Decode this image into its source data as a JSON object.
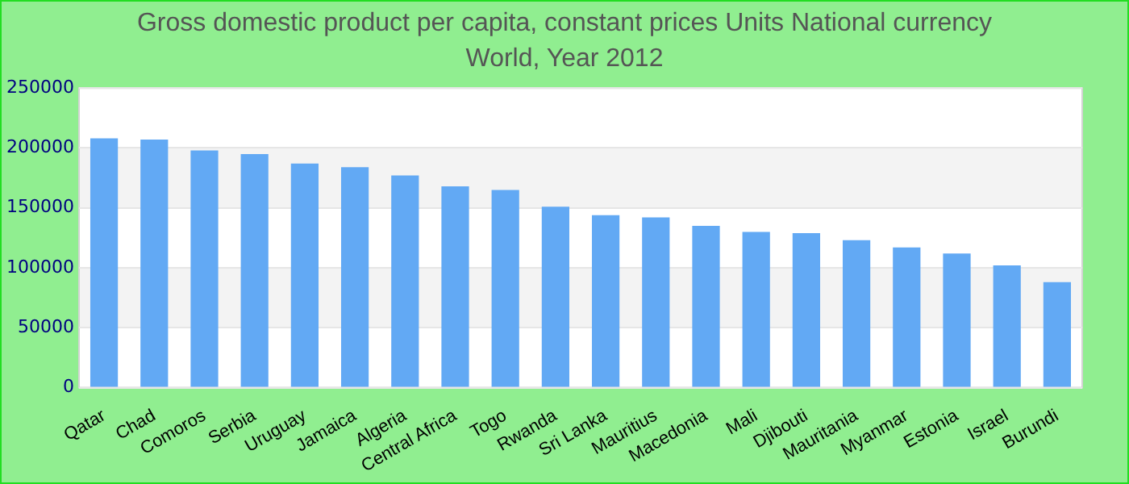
{
  "chart_data": {
    "type": "bar",
    "title": "Gross domestic product per capita, constant prices Units National currency",
    "subtitle": "World, Year 2012",
    "categories": [
      "Qatar",
      "Chad",
      "Comoros",
      "Serbia",
      "Uruguay",
      "Jamaica",
      "Algeria",
      "Central Africa",
      "Togo",
      "Rwanda",
      "Sri Lanka",
      "Mauritius",
      "Macedonia",
      "Mali",
      "Djibouti",
      "Mauritania",
      "Myanmar",
      "Estonia",
      "Israel",
      "Burundi"
    ],
    "values": [
      208000,
      207000,
      198000,
      195000,
      187000,
      184000,
      177000,
      168000,
      165000,
      151000,
      144000,
      142000,
      135000,
      130000,
      129000,
      123000,
      117000,
      112000,
      102000,
      88000
    ],
    "color": "#62a9f4",
    "ylim": [
      0,
      250000
    ],
    "yticks": [
      0,
      50000,
      100000,
      150000,
      200000,
      250000
    ],
    "grid": true
  }
}
